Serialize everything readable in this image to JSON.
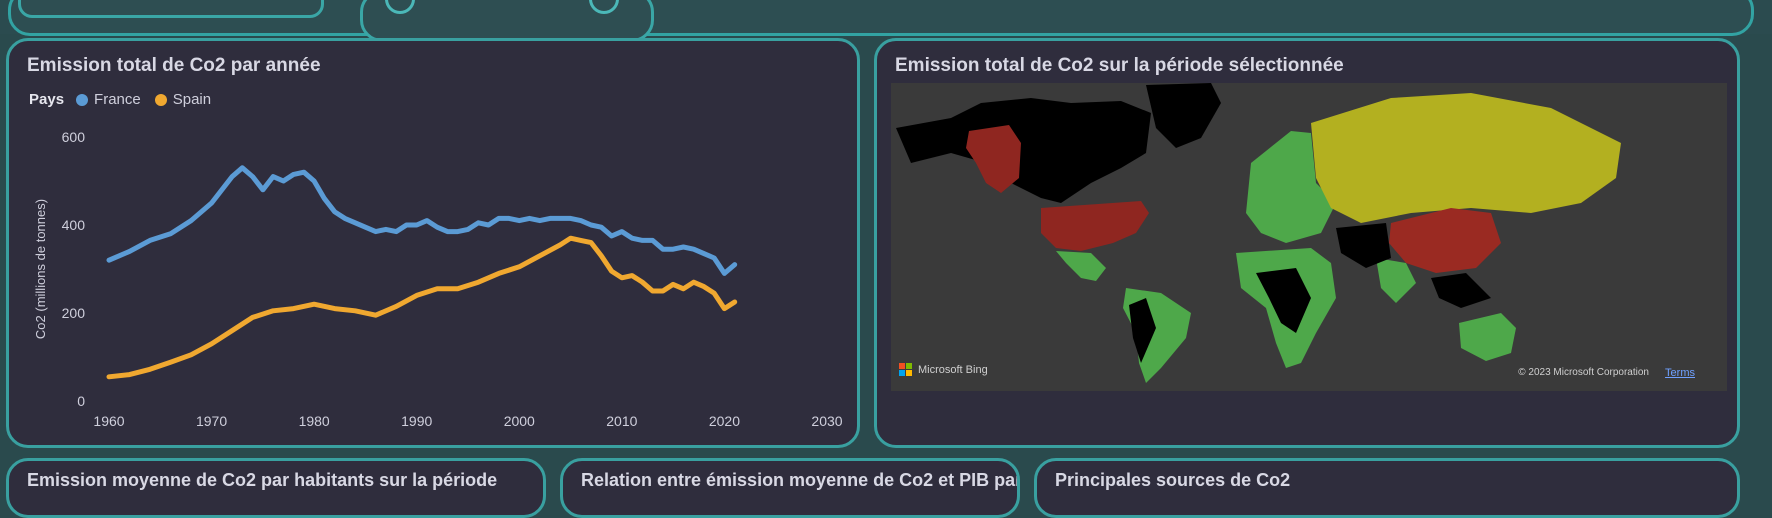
{
  "line_chart": {
    "title": "Emission total de Co2 par année",
    "legend_title": "Pays",
    "ylabel": "Co2 (millions de tonnes)",
    "series_colors": {
      "France": "#5b9bd5",
      "Spain": "#f0a830"
    }
  },
  "map_panel": {
    "title": "Emission total de Co2 sur la période sélectionnée",
    "logo_text": "Microsoft Bing",
    "copyright": "© 2023 Microsoft Corporation",
    "terms": "Terms",
    "colors": {
      "high": "#9a2a22",
      "mid": "#b3b020",
      "low": "#4ea84a",
      "none": "#000000",
      "background": "#3a3a3a"
    }
  },
  "bottom_panels": [
    {
      "title": "Emission moyenne de Co2 par habitants sur la période"
    },
    {
      "title": "Relation entre émission moyenne de Co2 et PIB par"
    },
    {
      "title": "Principales sources de Co2"
    }
  ],
  "chart_data": {
    "type": "line",
    "title": "Emission total de Co2 par année",
    "xlabel": "",
    "ylabel": "Co2 (millions de tonnes)",
    "xlim": [
      1960,
      2030
    ],
    "ylim": [
      0,
      600
    ],
    "xticks": [
      1960,
      1970,
      1980,
      1990,
      2000,
      2010,
      2020,
      2030
    ],
    "yticks": [
      0,
      200,
      400,
      600
    ],
    "legend_title": "Pays",
    "legend_position": "top-left",
    "grid": false,
    "series": [
      {
        "name": "France",
        "color": "#5b9bd5",
        "x": [
          1960,
          1962,
          1964,
          1966,
          1968,
          1970,
          1972,
          1973,
          1974,
          1975,
          1976,
          1977,
          1978,
          1979,
          1980,
          1981,
          1982,
          1983,
          1984,
          1985,
          1986,
          1987,
          1988,
          1989,
          1990,
          1991,
          1992,
          1993,
          1994,
          1995,
          1996,
          1997,
          1998,
          1999,
          2000,
          2001,
          2002,
          2003,
          2004,
          2005,
          2006,
          2007,
          2008,
          2009,
          2010,
          2011,
          2012,
          2013,
          2014,
          2015,
          2016,
          2017,
          2018,
          2019,
          2020,
          2021
        ],
        "y": [
          320,
          340,
          365,
          380,
          410,
          450,
          510,
          530,
          510,
          480,
          510,
          500,
          515,
          520,
          500,
          460,
          430,
          415,
          405,
          395,
          385,
          390,
          385,
          400,
          400,
          410,
          395,
          385,
          385,
          390,
          405,
          400,
          415,
          415,
          410,
          415,
          410,
          415,
          415,
          415,
          410,
          400,
          395,
          375,
          385,
          370,
          365,
          365,
          345,
          345,
          350,
          345,
          335,
          325,
          290,
          310
        ]
      },
      {
        "name": "Spain",
        "color": "#f0a830",
        "x": [
          1960,
          1962,
          1964,
          1966,
          1968,
          1970,
          1972,
          1974,
          1976,
          1978,
          1980,
          1982,
          1984,
          1986,
          1988,
          1990,
          1992,
          1994,
          1996,
          1998,
          2000,
          2002,
          2004,
          2005,
          2006,
          2007,
          2008,
          2009,
          2010,
          2011,
          2012,
          2013,
          2014,
          2015,
          2016,
          2017,
          2018,
          2019,
          2020,
          2021
        ],
        "y": [
          55,
          60,
          72,
          88,
          105,
          130,
          160,
          190,
          205,
          210,
          220,
          210,
          205,
          195,
          215,
          240,
          255,
          255,
          270,
          290,
          305,
          330,
          355,
          370,
          365,
          360,
          330,
          295,
          280,
          285,
          270,
          250,
          250,
          265,
          255,
          270,
          260,
          245,
          210,
          225
        ]
      }
    ]
  }
}
